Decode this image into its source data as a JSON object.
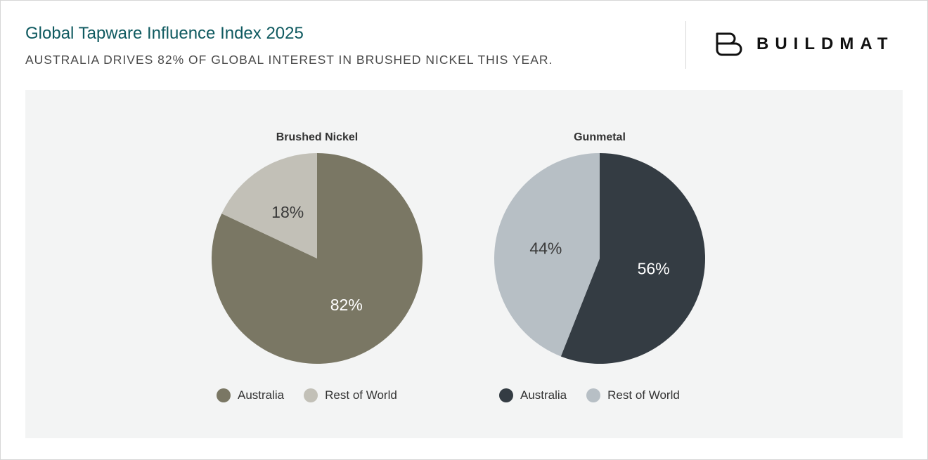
{
  "header": {
    "title": "Global Tapware Influence Index 2025",
    "subtitle": "AUSTRALIA DRIVES 82% OF GLOBAL INTEREST IN BRUSHED NICKEL THIS YEAR.",
    "logo_text": "BUILDMAT"
  },
  "chart_data": [
    {
      "type": "pie",
      "title": "Brushed Nickel",
      "categories": [
        "Australia",
        "Rest of World"
      ],
      "values": [
        82,
        18
      ],
      "labels": [
        "82%",
        "18%"
      ],
      "colors": [
        "#7a7764",
        "#c2c0b7"
      ],
      "label_colors": [
        "#ffffff",
        "#3a3a3a"
      ],
      "legend": "bottom"
    },
    {
      "type": "pie",
      "title": "Gunmetal",
      "categories": [
        "Australia",
        "Rest of World"
      ],
      "values": [
        56,
        44
      ],
      "labels": [
        "56%",
        "44%"
      ],
      "colors": [
        "#343c43",
        "#b7bfc5"
      ],
      "label_colors": [
        "#ffffff",
        "#3a3a3a"
      ],
      "legend": "bottom"
    }
  ]
}
